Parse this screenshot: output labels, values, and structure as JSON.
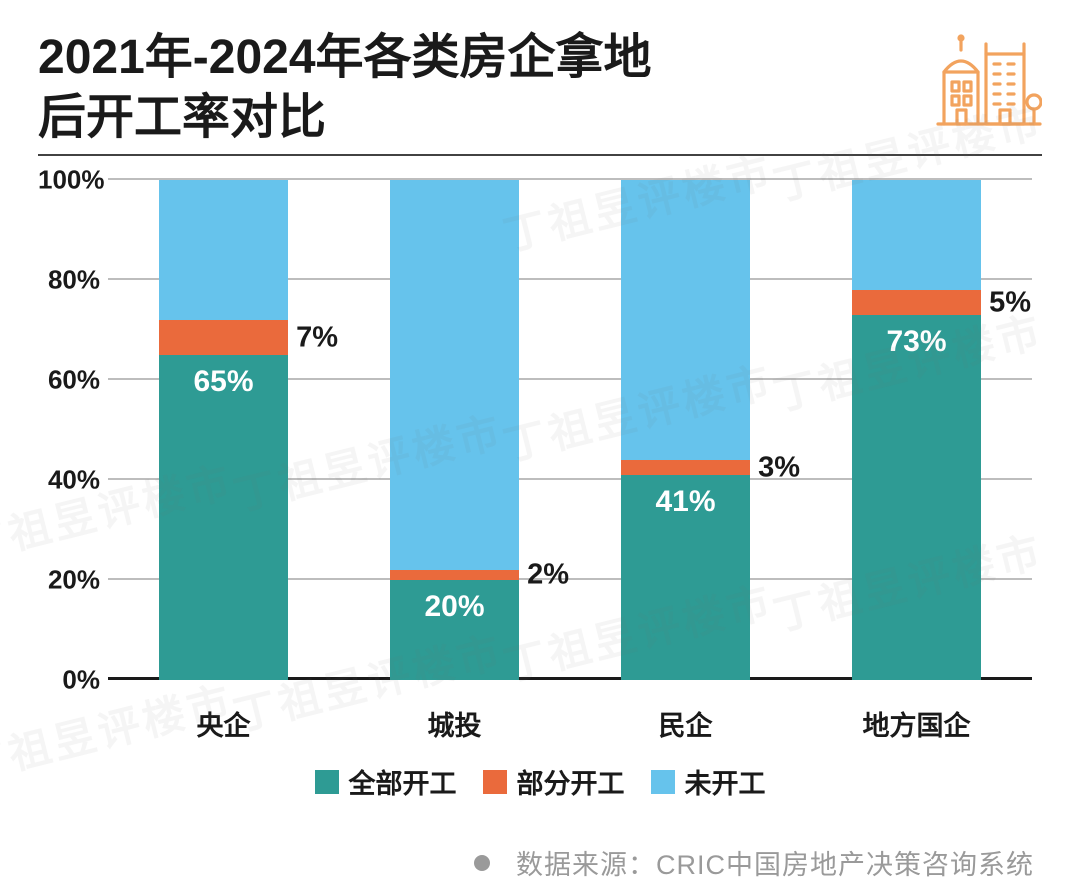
{
  "title_line1": "2021年-2024年各类房企拿地",
  "title_line2": "后开工率对比",
  "chart": {
    "type": "stacked-bar-100",
    "ylim": [
      0,
      100
    ],
    "ytick_step": 20,
    "yticks": [
      0,
      20,
      40,
      60,
      80,
      100
    ],
    "ytick_labels": [
      "0%",
      "20%",
      "40%",
      "60%",
      "80%",
      "100%"
    ],
    "grid_color": "#bdbdbd",
    "axis_color": "#1a1a1a",
    "bar_width_pct": 56,
    "categories": [
      "央企",
      "城投",
      "民企",
      "地方国企"
    ],
    "series": [
      {
        "key": "full",
        "label": "全部开工",
        "color": "#2e9b94"
      },
      {
        "key": "partial",
        "label": "部分开工",
        "color": "#ea6a3c"
      },
      {
        "key": "not",
        "label": "未开工",
        "color": "#66c3ec"
      }
    ],
    "data": [
      {
        "full": 65,
        "partial": 7,
        "not": 28,
        "labels": {
          "full": "65%",
          "partial": "7%"
        }
      },
      {
        "full": 20,
        "partial": 2,
        "not": 78,
        "labels": {
          "full": "20%",
          "partial": "2%"
        }
      },
      {
        "full": 41,
        "partial": 3,
        "not": 56,
        "labels": {
          "full": "41%",
          "partial": "3%"
        }
      },
      {
        "full": 73,
        "partial": 5,
        "not": 22,
        "labels": {
          "full": "73%",
          "partial": "5%"
        }
      }
    ],
    "label_fontsize": 30,
    "category_fontsize": 27,
    "ytick_fontsize": 26
  },
  "legend": {
    "items": [
      "全部开工",
      "部分开工",
      "未开工"
    ]
  },
  "source": {
    "dot_color": "#9a9a9a",
    "text": "数据来源：CRIC中国房地产决策咨询系统"
  },
  "icon_color": "#f2a35e",
  "watermark_text": "丁祖昱评楼市",
  "background_color": "#ffffff"
}
